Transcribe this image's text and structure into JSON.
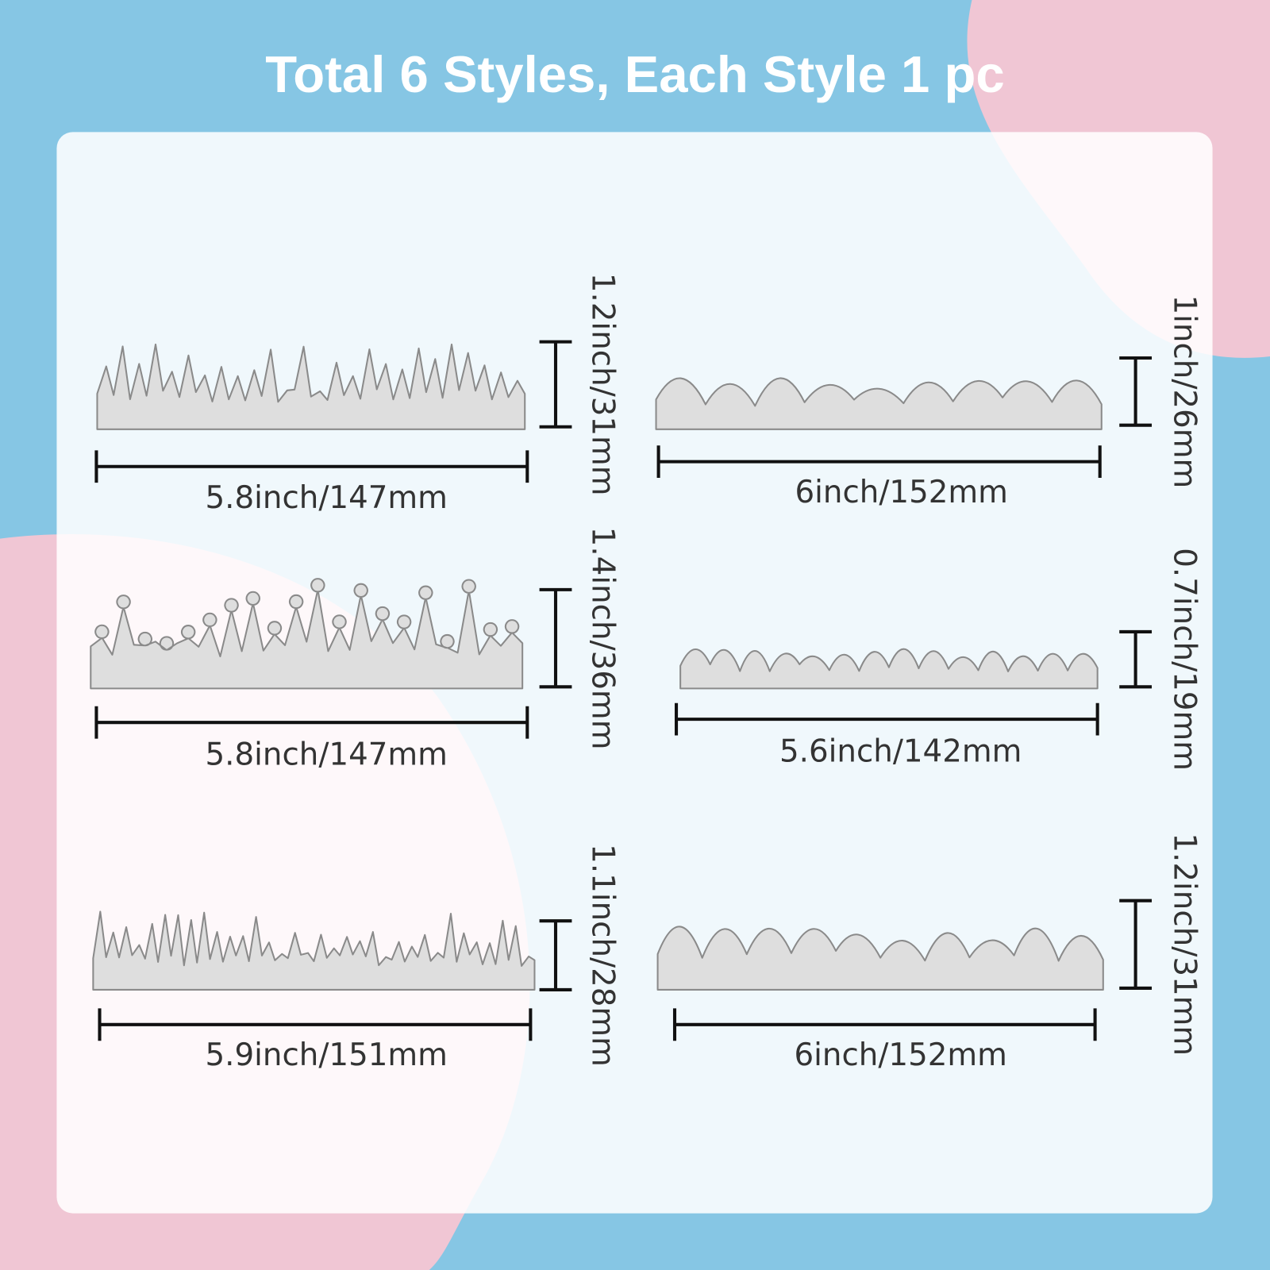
{
  "title": "Total 6 Styles, Each Style 1 pc",
  "items": [
    {
      "width": "5.8inch/147mm",
      "height": "1.2inch/31mm"
    },
    {
      "width": "6inch/152mm",
      "height": "1inch/26mm"
    },
    {
      "width": "5.8inch/147mm",
      "height": "1.4inch/36mm"
    },
    {
      "width": "5.6inch/142mm",
      "height": "0.7inch/19mm"
    },
    {
      "width": "5.9inch/151mm",
      "height": "1.1inch/28mm"
    },
    {
      "width": "6inch/152mm",
      "height": "1.2inch/31mm"
    }
  ]
}
